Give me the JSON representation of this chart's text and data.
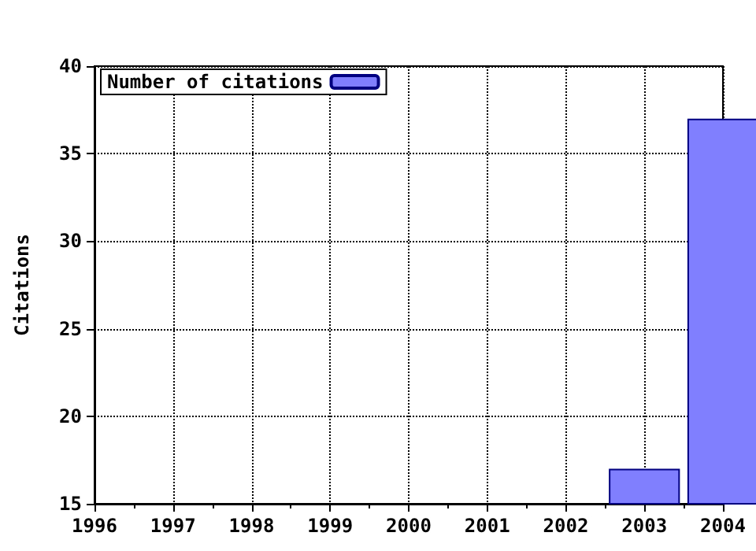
{
  "chart_data": {
    "type": "bar",
    "ylabel": "Citations",
    "x": [
      2003,
      2004
    ],
    "series": [
      {
        "name": "Number of citations",
        "color": "#8080ff",
        "values": [
          17,
          37
        ]
      }
    ],
    "xlim": [
      1996,
      2004
    ],
    "xticks": [
      1996,
      1997,
      1998,
      1999,
      2000,
      2001,
      2002,
      2003,
      2004
    ],
    "ylim": [
      15,
      40
    ],
    "yticks": [
      15,
      20,
      25,
      30,
      35,
      40
    ],
    "grid": true,
    "legend": "top left"
  }
}
